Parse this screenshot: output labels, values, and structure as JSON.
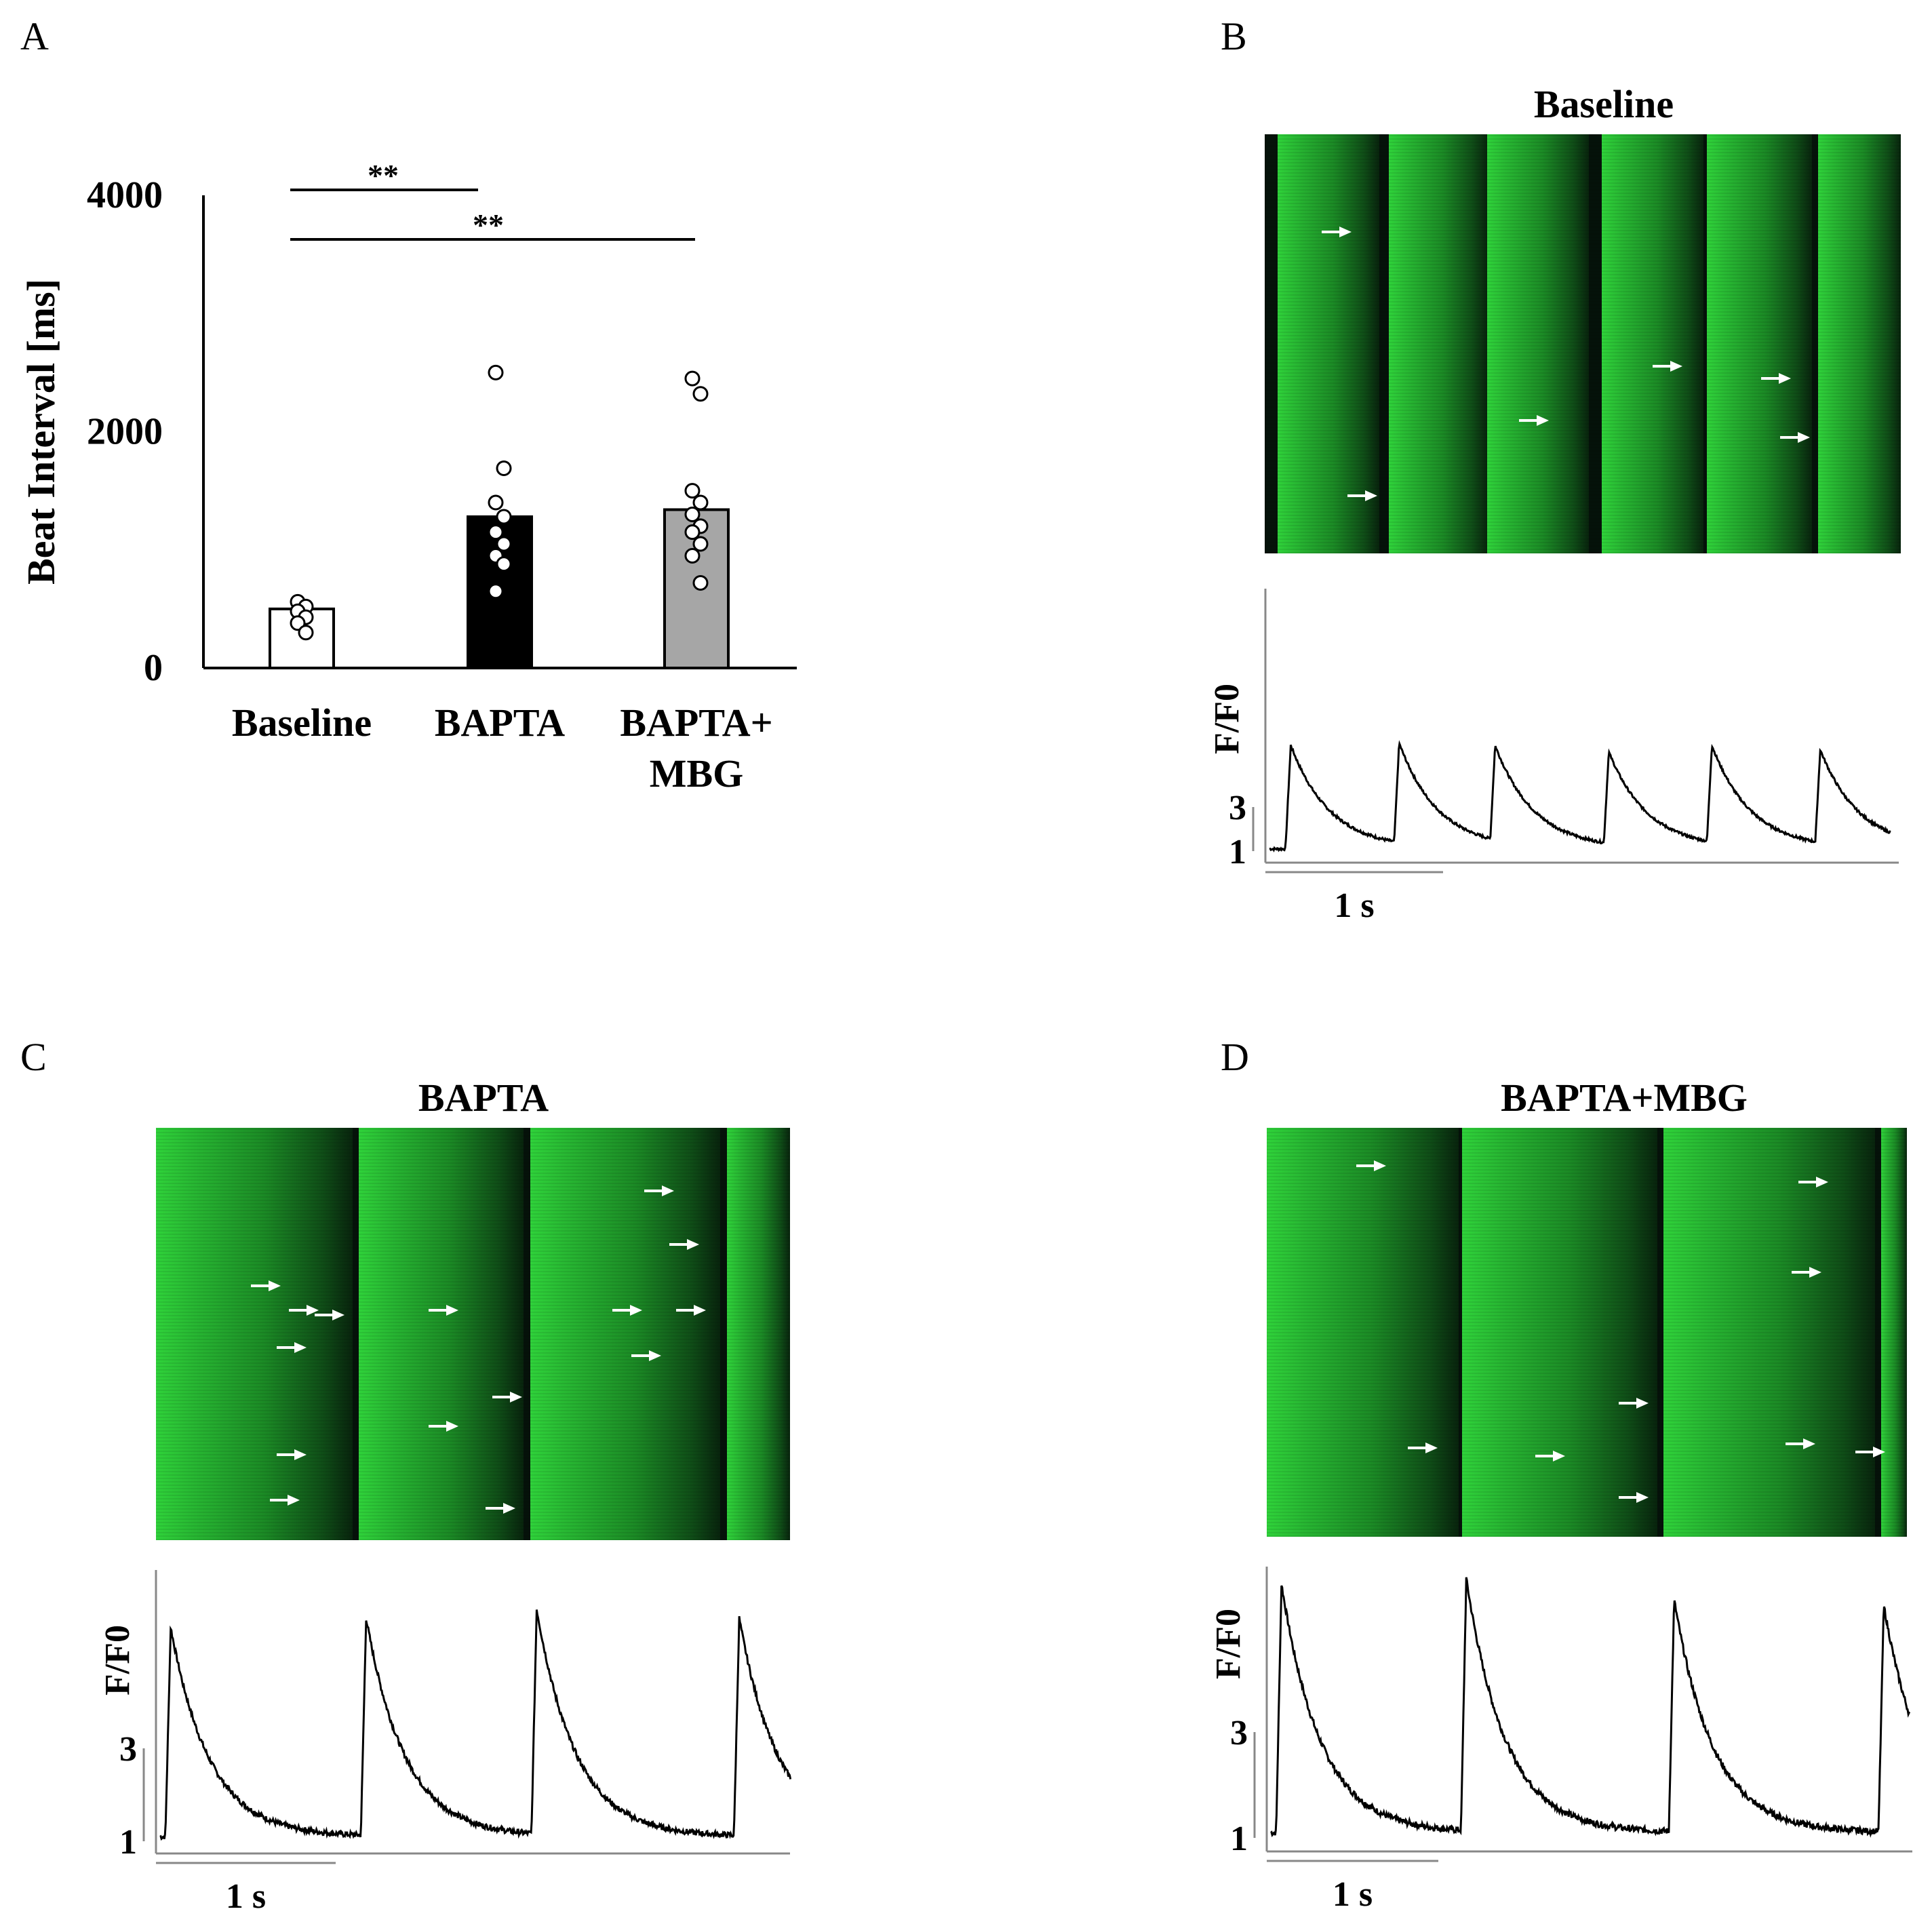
{
  "panels": {
    "A": {
      "letter": "A"
    },
    "B": {
      "letter": "B",
      "title": "Baseline"
    },
    "C": {
      "letter": "C",
      "title": "BAPTA"
    },
    "D": {
      "letter": "D",
      "title": "BAPTA+MBG"
    }
  },
  "colors": {
    "kymo_bright": "#2fd23a",
    "kymo_dark": "#061a0b",
    "bar_baseline": "#ffffff",
    "bar_bapta": "#000000",
    "bar_mbg": "#a6a6a6"
  },
  "chart_data": [
    {
      "id": "A",
      "type": "bar",
      "ylabel": "Beat Interval [ms]",
      "ylim": [
        0,
        4000
      ],
      "yticks": [
        "0",
        "2000",
        "4000"
      ],
      "categories": [
        "Baseline",
        "BAPTA",
        "BAPTA+ MBG"
      ],
      "category_lines": [
        [
          "Baseline"
        ],
        [
          "BAPTA"
        ],
        [
          "BAPTA+",
          "MBG"
        ]
      ],
      "values": [
        500,
        1280,
        1340
      ],
      "points": [
        [
          560,
          520,
          480,
          430,
          380,
          300
        ],
        [
          2500,
          1690,
          1400,
          1280,
          1150,
          1050,
          950,
          880,
          650
        ],
        [
          2450,
          2320,
          1500,
          1400,
          1300,
          1200,
          1150,
          1050,
          950,
          720
        ]
      ],
      "significance": [
        {
          "from": "Baseline",
          "to": "BAPTA",
          "label": "**"
        },
        {
          "from": "Baseline",
          "to": "BAPTA+ MBG",
          "label": "**"
        }
      ]
    },
    {
      "id": "B",
      "type": "line",
      "title": "Baseline",
      "ylabel": "F/F0",
      "yticks": [
        "1",
        "3"
      ],
      "scalebar": "1 s",
      "peaks_s": [
        0.12,
        0.73,
        1.27,
        1.91,
        2.49,
        3.1
      ],
      "peak_values": [
        5.8,
        5.9,
        5.8,
        5.5,
        5.8,
        5.6
      ],
      "duration_s": 3.5
    },
    {
      "id": "C",
      "type": "line",
      "title": "BAPTA",
      "ylabel": "F/F0",
      "yticks": [
        "1",
        "3"
      ],
      "scalebar": "1 s",
      "peaks_s": [
        0.06,
        1.16,
        2.12,
        3.26
      ],
      "peak_values": [
        5.6,
        5.8,
        6.0,
        5.8
      ],
      "duration_s": 3.55
    },
    {
      "id": "D",
      "type": "line",
      "title": "BAPTA+MBG",
      "ylabel": "F/F0",
      "yticks": [
        "1",
        "3"
      ],
      "scalebar": "1 s",
      "peaks_s": [
        0.06,
        1.1,
        2.27,
        3.45
      ],
      "peak_values": [
        5.8,
        5.9,
        5.5,
        5.4
      ],
      "duration_s": 3.6
    }
  ]
}
